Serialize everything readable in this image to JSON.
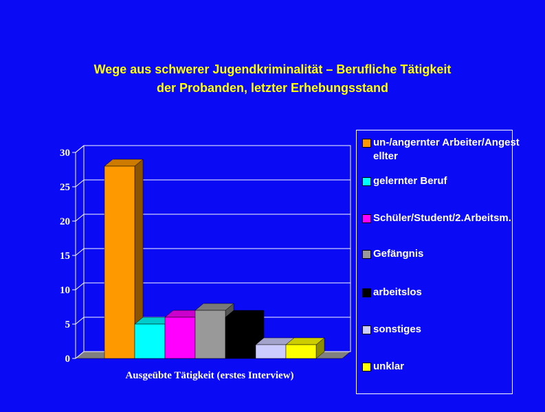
{
  "chart_data": {
    "type": "bar3d",
    "title": [
      "Wege aus schwerer Jugendkriminalität –  Berufliche Tätigkeit",
      "der Probanden,  letzter Erhebungsstand"
    ],
    "x_label": "Ausgeübte Tätigkeit (erstes Interview)",
    "ylim": [
      0,
      30
    ],
    "yticks": [
      0,
      5,
      10,
      15,
      20,
      25,
      30
    ],
    "grid": true,
    "legend": "right",
    "series": [
      {
        "name": "un-/angernter Arbeiter/Angestellter",
        "color": "#ff9900",
        "values": [
          28
        ]
      },
      {
        "name": "gelernter Beruf",
        "color": "#00ffff",
        "values": [
          5
        ]
      },
      {
        "name": "Schüler/Student/2.Arbeitsm.",
        "color": "#ff00ff",
        "values": [
          6
        ]
      },
      {
        "name": "Gefängnis",
        "color": "#999999",
        "values": [
          7
        ]
      },
      {
        "name": "arbeitslos",
        "color": "#000000",
        "values": [
          6
        ]
      },
      {
        "name": "sonstiges",
        "color": "#ccccff",
        "values": [
          2
        ]
      },
      {
        "name": "unklar",
        "color": "#ffff00",
        "values": [
          2
        ]
      }
    ]
  }
}
